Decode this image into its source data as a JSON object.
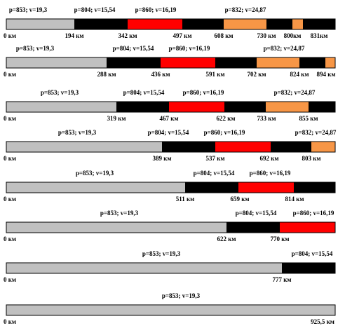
{
  "rows": [
    {
      "segments": [
        "p=853; v=19,3",
        "p=804; v=15,54",
        "p=860; v=16,19",
        "p=832; v=24,87"
      ],
      "distances": [
        "0 км",
        "194 км",
        "342 км",
        "497 км",
        "608 км",
        "730 км",
        "800км",
        "831км"
      ]
    },
    {
      "segments": [
        "p=853; v=19,3",
        "p=804; v=15,54",
        "p=860; v=16,19",
        "p=832; v=24,87"
      ],
      "distances": [
        "0 км",
        "288 км",
        "436 км",
        "591 км",
        "702 км",
        "824 км",
        "894 км"
      ]
    },
    {
      "segments": [
        "p=853; v=19,3",
        "p=804; v=15,54",
        "p=860; v=16,19",
        "p=832; v=24,87"
      ],
      "distances": [
        "0 км",
        "319 км",
        "467 км",
        "622 км",
        "733 км",
        "855 км"
      ]
    },
    {
      "segments": [
        "p=853; v=19,3",
        "p=804; v=15,54",
        "p=860; v=16,19",
        "p=832; v=24,87"
      ],
      "distances": [
        "0 км",
        "389 км",
        "537 км",
        "692 км",
        "803 км"
      ]
    },
    {
      "segments": [
        "p=853; v=19,3",
        "p=804; v=15,54",
        "p=860; v=16,19"
      ],
      "distances": [
        "0 км",
        "511 км",
        "659 км",
        "814 км"
      ]
    },
    {
      "segments": [
        "p=853; v=19,3",
        "p=804; v=15,54",
        "p=860; v=16,19"
      ],
      "distances": [
        "0 км",
        "622 км",
        "770 км"
      ]
    },
    {
      "segments": [
        "p=853; v=19,3",
        "p=804; v=15,54"
      ],
      "distances": [
        "0 км",
        "777 км"
      ]
    },
    {
      "segments": [
        "p=853; v=19,3"
      ],
      "distances": [
        "0 км",
        "925,5 км"
      ]
    }
  ]
}
